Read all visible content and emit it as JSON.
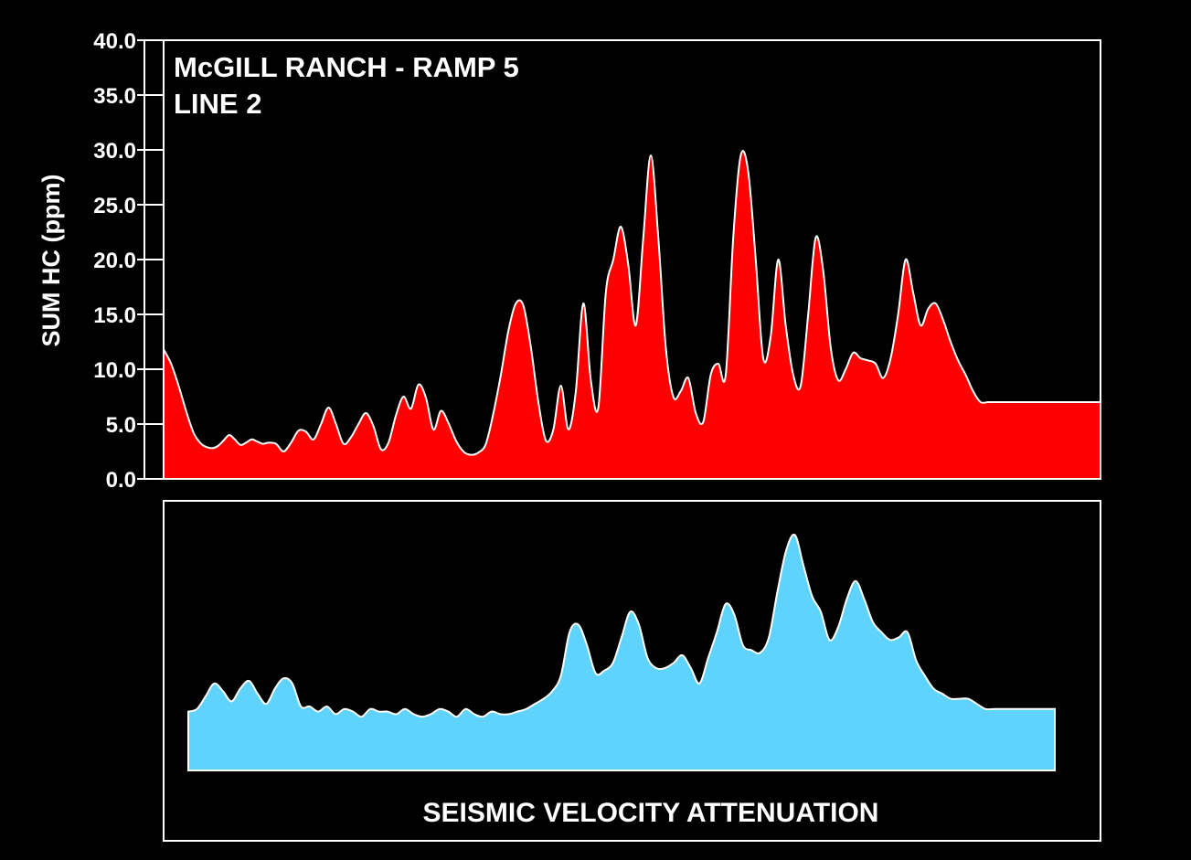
{
  "chart_data": [
    {
      "type": "area",
      "title": "McGILL RANCH - RAMP 5",
      "subtitle": "LINE 2",
      "ylabel": "SUM HC (ppm)",
      "xlabel": "",
      "ylim": [
        0,
        40
      ],
      "yticks": [
        "0.0",
        "5.0",
        "10.0",
        "15.0",
        "20.0",
        "25.0",
        "30.0",
        "35.0",
        "40.0"
      ],
      "grid": false,
      "colors": {
        "fill": "#ff0000",
        "line": "#ffffff"
      },
      "x": [
        0,
        4,
        8,
        12,
        16,
        20,
        23,
        26,
        29,
        32,
        35,
        38,
        41,
        44,
        47,
        50,
        53,
        56,
        60,
        64,
        68,
        72,
        76,
        80,
        84,
        88,
        92,
        96,
        100,
        104,
        108,
        112,
        116,
        120,
        124,
        128,
        132,
        136,
        140,
        144,
        148,
        152,
        156,
        160,
        164,
        168,
        172,
        176,
        180,
        184,
        188,
        192,
        196,
        200,
        204,
        208,
        212,
        216,
        220,
        224,
        228,
        232,
        236,
        240,
        244,
        248,
        252,
        256,
        260,
        264,
        268,
        272,
        276,
        280,
        284,
        288,
        292,
        296,
        300,
        304,
        308,
        312,
        316,
        320,
        324,
        328,
        332,
        336,
        340,
        344,
        348,
        352,
        356,
        360,
        364,
        368,
        372,
        376,
        380,
        384,
        388,
        392,
        396,
        400,
        404,
        408,
        412,
        416,
        420,
        424,
        428,
        432,
        436,
        440,
        444,
        448,
        452,
        456,
        460,
        464,
        468,
        472,
        476,
        480,
        484,
        488,
        492,
        496,
        500
      ],
      "values": [
        11.8,
        10.5,
        8.5,
        6.2,
        4.2,
        3.2,
        2.9,
        2.8,
        3.0,
        3.5,
        4.0,
        3.6,
        3.1,
        3.3,
        3.6,
        3.4,
        3.2,
        3.3,
        3.2,
        2.5,
        3.3,
        4.4,
        4.3,
        3.6,
        5.0,
        6.5,
        5.0,
        3.2,
        3.8,
        5.0,
        6.0,
        4.8,
        2.7,
        3.3,
        5.8,
        7.5,
        6.4,
        8.6,
        7.4,
        4.5,
        6.2,
        5.1,
        3.5,
        2.5,
        2.2,
        2.4,
        3.2,
        6.0,
        9.5,
        13.5,
        16.0,
        15.8,
        12.0,
        7.0,
        3.5,
        4.5,
        8.5,
        4.5,
        8.0,
        16.0,
        9.0,
        6.5,
        17.0,
        20.0,
        23.0,
        19.5,
        14.0,
        22.0,
        29.5,
        22.0,
        12.0,
        7.5,
        8.0,
        9.2,
        6.0,
        5.2,
        9.5,
        10.5,
        9.5,
        22.0,
        29.5,
        28.0,
        20.0,
        11.0,
        13.0,
        20.0,
        14.0,
        9.5,
        8.5,
        15.0,
        22.0,
        19.0,
        12.0,
        9.0,
        10.0,
        11.5,
        11.0,
        10.8,
        10.5,
        9.2,
        11.0,
        15.0,
        20.0,
        17.0,
        14.0,
        15.5,
        16.0,
        14.5,
        12.5,
        10.8,
        9.5,
        8.0,
        7.0,
        7.0,
        7.0,
        7.0,
        7.0,
        7.0,
        7.0,
        7.0,
        7.0,
        7.0,
        7.0,
        7.0,
        7.0,
        7.0,
        7.0,
        7.0,
        7.0
      ]
    },
    {
      "type": "area",
      "title": "",
      "xlabel": "SEISMIC VELOCITY ATTENUATION",
      "ylabel": "",
      "ylim": [
        0,
        100
      ],
      "grid": false,
      "colors": {
        "fill": "#5fd3fb",
        "line": "#ffffff"
      },
      "x": [
        0,
        5,
        10,
        15,
        20,
        25,
        30,
        35,
        40,
        45,
        50,
        55,
        60,
        65,
        70,
        75,
        80,
        85,
        90,
        95,
        100,
        105,
        110,
        115,
        120,
        125,
        130,
        135,
        140,
        145,
        150,
        155,
        160,
        165,
        170,
        175,
        180,
        185,
        190,
        195,
        200,
        205,
        210,
        215,
        220,
        225,
        230,
        235,
        240,
        245,
        250,
        255,
        260,
        265,
        270,
        275,
        280,
        285,
        290,
        295,
        300,
        305,
        310,
        315,
        320,
        325,
        330,
        335,
        340,
        345,
        350,
        355,
        360,
        365,
        370,
        375,
        380,
        385,
        390,
        395,
        400,
        405,
        410,
        415,
        420,
        425,
        430,
        435,
        440,
        445,
        450,
        455,
        460,
        465,
        470,
        475,
        480,
        485,
        490,
        495,
        500
      ],
      "values": [
        23,
        24,
        29,
        34,
        31,
        27,
        32,
        35,
        30,
        26,
        32,
        36,
        34,
        25,
        25,
        23,
        25,
        22,
        24,
        23,
        21,
        24,
        23,
        23,
        22,
        24,
        22,
        21,
        22,
        24,
        23,
        21,
        24,
        22,
        21,
        23,
        22,
        22,
        23,
        24,
        26,
        28,
        31,
        37,
        54,
        57,
        49,
        38,
        39,
        42,
        52,
        62,
        57,
        44,
        40,
        40,
        42,
        45,
        40,
        34,
        44,
        54,
        65,
        61,
        49,
        47,
        46,
        52,
        70,
        86,
        92,
        80,
        68,
        62,
        51,
        56,
        67,
        74,
        67,
        58,
        54,
        51,
        52,
        54,
        43,
        37,
        32,
        30,
        28,
        28,
        28,
        26,
        24,
        24,
        24,
        24,
        24,
        24,
        24,
        24,
        24
      ]
    }
  ]
}
